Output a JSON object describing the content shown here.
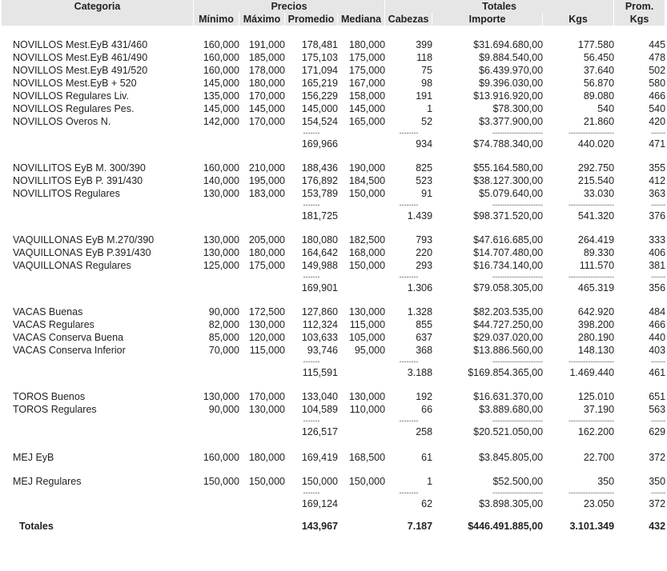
{
  "header": {
    "categoria": "Categoria",
    "precios": "Precios",
    "totales": "Totales",
    "prom": "Prom.",
    "minimo": "Mínimo",
    "maximo": "Máximo",
    "promedio": "Promedio",
    "mediana": "Mediana",
    "cabezas": "Cabezas",
    "importe": "Importe",
    "kgs": "Kgs",
    "prom_kgs": "Kgs"
  },
  "dash_short": "-------",
  "dash_cab": "--------",
  "dash_imp": "---------------------",
  "dash_kgs": "-------------------",
  "dash_prom": "------",
  "groups": [
    {
      "rows": [
        [
          "NOVILLOS Mest.EyB 431/460",
          "160,000",
          "191,000",
          "178,481",
          "180,000",
          "399",
          "$31.694.680,00",
          "177.580",
          "445"
        ],
        [
          "NOVILLOS Mest.EyB 461/490",
          "160,000",
          "185,000",
          "175,103",
          "175,000",
          "118",
          "$9.884.540,00",
          "56.450",
          "478"
        ],
        [
          "NOVILLOS Mest.EyB 491/520",
          "160,000",
          "178,000",
          "171,094",
          "175,000",
          "75",
          "$6.439.970,00",
          "37.640",
          "502"
        ],
        [
          "NOVILLOS Mest.EyB + 520",
          "145,000",
          "180,000",
          "165,219",
          "167,000",
          "98",
          "$9.396.030,00",
          "56.870",
          "580"
        ],
        [
          "NOVILLOS Regulares Liv.",
          "135,000",
          "170,000",
          "156,229",
          "158,000",
          "191",
          "$13.916.920,00",
          "89.080",
          "466"
        ],
        [
          "NOVILLOS Regulares Pes.",
          "145,000",
          "145,000",
          "145,000",
          "145,000",
          "1",
          "$78.300,00",
          "540",
          "540"
        ],
        [
          "NOVILLOS Overos N.",
          "142,000",
          "170,000",
          "154,524",
          "165,000",
          "52",
          "$3.377.900,00",
          "21.860",
          "420"
        ]
      ],
      "subtotal": {
        "promedio": "169,966",
        "cabezas": "934",
        "importe": "$74.788.340,00",
        "kgs": "440.020",
        "prom": "471"
      }
    },
    {
      "rows": [
        [
          "NOVILLITOS EyB M. 300/390",
          "160,000",
          "210,000",
          "188,436",
          "190,000",
          "825",
          "$55.164.580,00",
          "292.750",
          "355"
        ],
        [
          "NOVILLITOS EyB P. 391/430",
          "140,000",
          "195,000",
          "176,892",
          "184,500",
          "523",
          "$38.127.300,00",
          "215.540",
          "412"
        ],
        [
          "NOVILLITOS Regulares",
          "130,000",
          "183,000",
          "153,789",
          "150,000",
          "91",
          "$5.079.640,00",
          "33.030",
          "363"
        ]
      ],
      "subtotal": {
        "promedio": "181,725",
        "cabezas": "1.439",
        "importe": "$98.371.520,00",
        "kgs": "541.320",
        "prom": "376"
      }
    },
    {
      "rows": [
        [
          "VAQUILLONAS EyB M.270/390",
          "130,000",
          "205,000",
          "180,080",
          "182,500",
          "793",
          "$47.616.685,00",
          "264.419",
          "333"
        ],
        [
          "VAQUILLONAS EyB P.391/430",
          "130,000",
          "180,000",
          "164,642",
          "168,000",
          "220",
          "$14.707.480,00",
          "89.330",
          "406"
        ],
        [
          "VAQUILLONAS Regulares",
          "125,000",
          "175,000",
          "149,988",
          "150,000",
          "293",
          "$16.734.140,00",
          "111.570",
          "381"
        ]
      ],
      "subtotal": {
        "promedio": "169,901",
        "cabezas": "1.306",
        "importe": "$79.058.305,00",
        "kgs": "465.319",
        "prom": "356"
      }
    },
    {
      "rows": [
        [
          "VACAS Buenas",
          "90,000",
          "172,500",
          "127,860",
          "130,000",
          "1.328",
          "$82.203.535,00",
          "642.920",
          "484"
        ],
        [
          "VACAS Regulares",
          "82,000",
          "130,000",
          "112,324",
          "115,000",
          "855",
          "$44.727.250,00",
          "398.200",
          "466"
        ],
        [
          "VACAS Conserva Buena",
          "85,000",
          "120,000",
          "103,633",
          "105,000",
          "637",
          "$29.037.020,00",
          "280.190",
          "440"
        ],
        [
          "VACAS Conserva Inferior",
          "70,000",
          "115,000",
          "93,746",
          "95,000",
          "368",
          "$13.886.560,00",
          "148.130",
          "403"
        ]
      ],
      "subtotal": {
        "promedio": "115,591",
        "cabezas": "3.188",
        "importe": "$169.854.365,00",
        "kgs": "1.469.440",
        "prom": "461"
      }
    },
    {
      "rows": [
        [
          "TOROS Buenos",
          "130,000",
          "170,000",
          "133,040",
          "130,000",
          "192",
          "$16.631.370,00",
          "125.010",
          "651"
        ],
        [
          "TOROS Regulares",
          "90,000",
          "130,000",
          "104,589",
          "110,000",
          "66",
          "$3.889.680,00",
          "37.190",
          "563"
        ]
      ],
      "subtotal": {
        "promedio": "126,517",
        "cabezas": "258",
        "importe": "$20.521.050,00",
        "kgs": "162.200",
        "prom": "629"
      }
    },
    {
      "rows": [
        [
          "MEJ EyB",
          "160,000",
          "180,000",
          "169,419",
          "168,500",
          "61",
          "$3.845.805,00",
          "22.700",
          "372"
        ],
        [
          "MEJ Regulares",
          "150,000",
          "150,000",
          "150,000",
          "150,000",
          "1",
          "$52.500,00",
          "350",
          "350"
        ]
      ],
      "subtotal": {
        "promedio": "169,124",
        "cabezas": "62",
        "importe": "$3.898.305,00",
        "kgs": "23.050",
        "prom": "372"
      }
    }
  ],
  "totals": {
    "label": "Totales",
    "promedio": "143,967",
    "cabezas": "7.187",
    "importe": "$446.491.885,00",
    "kgs": "3.101.349",
    "prom": "432"
  }
}
